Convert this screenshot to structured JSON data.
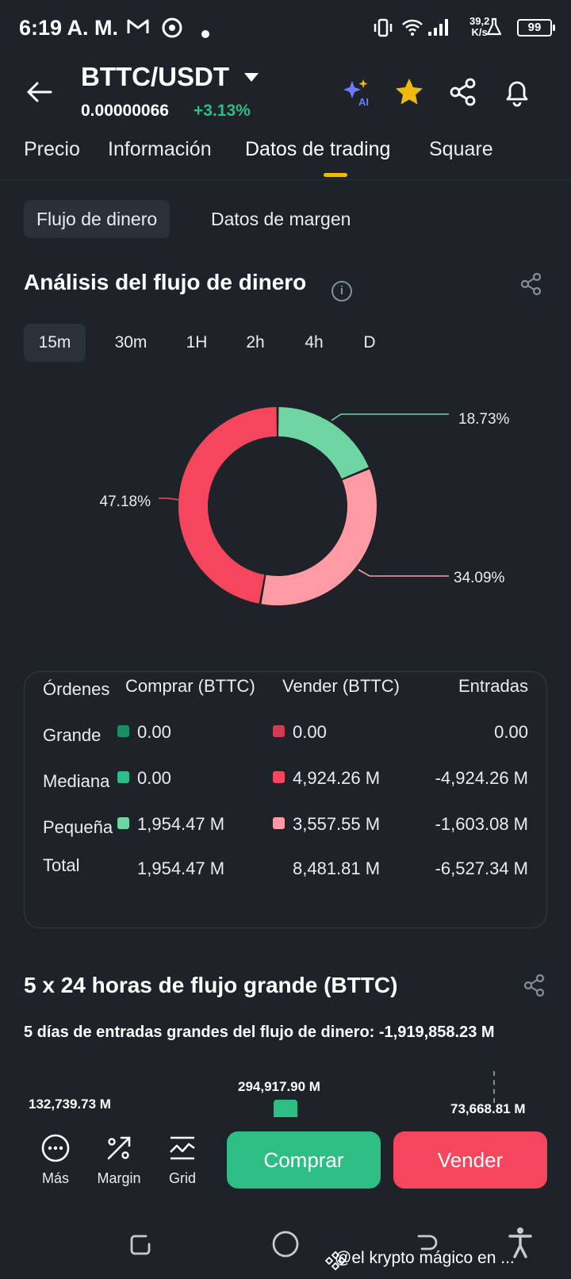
{
  "status_bar": {
    "time": "6:19 A. M.",
    "net_speed_value": "39,2",
    "net_speed_unit": "K/s",
    "battery": "99"
  },
  "header": {
    "pair": "BTTC/USDT",
    "price": "0.00000066",
    "change": "+3.13%",
    "change_color": "#2ebd85"
  },
  "main_tabs": [
    "Precio",
    "Información",
    "Datos de trading",
    "Square"
  ],
  "active_tab": "Datos de trading",
  "sub_tabs": [
    "Flujo de dinero",
    "Datos de margen"
  ],
  "money_flow": {
    "title": "Análisis del flujo de dinero",
    "timeframes": [
      "15m",
      "30m",
      "1H",
      "2h",
      "4h",
      "D"
    ],
    "active_timeframe": "15m"
  },
  "chart_data": {
    "type": "pie",
    "variant": "donut",
    "slices": [
      {
        "label": "18.73%",
        "value": 18.73,
        "color": "#6fd5a3"
      },
      {
        "label": "34.09%",
        "value": 34.09,
        "color": "#fe9aa3"
      },
      {
        "label": "47.18%",
        "value": 47.18,
        "color": "#f6465d"
      }
    ]
  },
  "flow_table": {
    "headers": [
      "Órdenes",
      "Comprar (BTTC)",
      "Vender (BTTC)",
      "Entradas"
    ],
    "rows": [
      {
        "label": "Grande",
        "buy": "0.00",
        "sell": "0.00",
        "inflow": "0.00",
        "buy_color": "#1a8f63",
        "sell_color": "#d33b50"
      },
      {
        "label": "Mediana",
        "buy": "0.00",
        "sell": "4,924.26 M",
        "inflow": "-4,924.26 M",
        "buy_color": "#2ebd85",
        "sell_color": "#f6465d"
      },
      {
        "label": "Pequeña",
        "buy": "1,954.47 M",
        "sell": "3,557.55 M",
        "inflow": "-1,603.08 M",
        "buy_color": "#6fd5a3",
        "sell_color": "#fe9aa3"
      },
      {
        "label": "Total",
        "buy": "1,954.47 M",
        "sell": "8,481.81 M",
        "inflow": "-6,527.34 M"
      }
    ]
  },
  "large_flow": {
    "title": "5 x 24 horas de flujo grande (BTTC)",
    "subtitle": "5 días de entradas grandes del flujo de dinero: -1,919,858.23 M",
    "bar_labels": [
      "132,739.73 M",
      "294,917.90 M",
      "73,668.81 M"
    ]
  },
  "actions": {
    "more": "Más",
    "margin": "Margin",
    "grid": "Grid",
    "buy": "Comprar",
    "sell": "Vender"
  },
  "watermark": "@el krypto mágico en ..."
}
